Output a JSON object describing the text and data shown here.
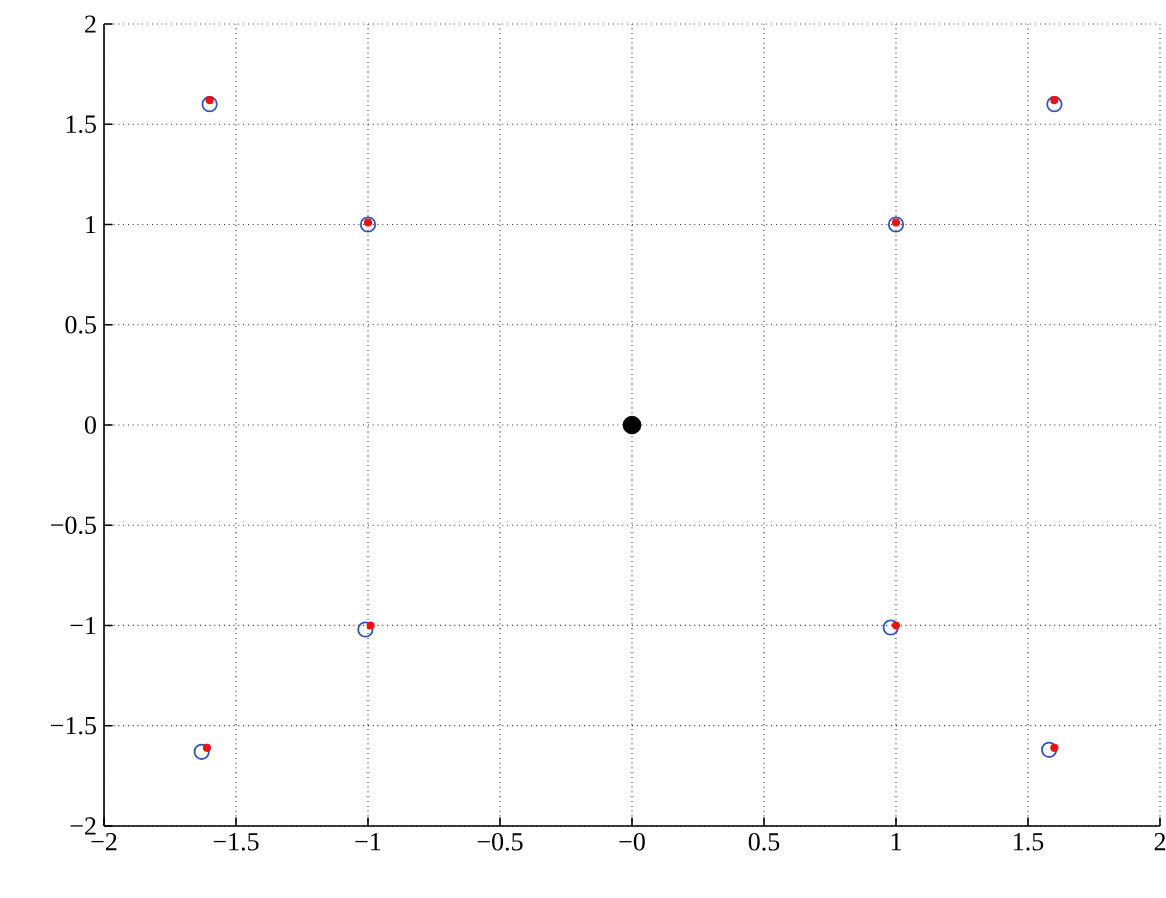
{
  "chart_data": {
    "type": "scatter",
    "marker": "circle",
    "grid": true,
    "xlim": [
      -2,
      2
    ],
    "ylim": [
      -2,
      2
    ],
    "xticks": [
      {
        "value": -2,
        "label": "−2"
      },
      {
        "value": -1.5,
        "label": "−1.5"
      },
      {
        "value": -1,
        "label": "−1"
      },
      {
        "value": -0.5,
        "label": "−0.5"
      },
      {
        "value": 0,
        "label": "−0"
      },
      0.5,
      1,
      1.5,
      2
    ],
    "yticks": [
      {
        "value": -2,
        "label": "−2"
      },
      {
        "value": -1.5,
        "label": "−1.5"
      },
      {
        "value": -1,
        "label": "−1"
      },
      {
        "value": -0.5,
        "label": "−0.5"
      },
      0,
      0.5,
      1,
      1.5,
      2
    ],
    "series": [
      {
        "color": "#000000",
        "x": [
          0
        ],
        "values": [
          0
        ]
      },
      {
        "color": "#3355bb",
        "x": [
          -1.6,
          -1,
          1,
          1.6,
          -1.63,
          -1.01,
          0.98,
          1.58
        ],
        "values": [
          1.6,
          1,
          1,
          1.6,
          -1.63,
          -1.02,
          -1.01,
          -1.62
        ]
      },
      {
        "color": "#ee1111",
        "x": [
          -1.6,
          -1,
          1,
          1.6,
          -1.61,
          -0.99,
          1,
          1.6
        ],
        "values": [
          1.62,
          1.01,
          1.01,
          1.62,
          -1.61,
          -1,
          -1,
          -1.61
        ]
      }
    ]
  }
}
